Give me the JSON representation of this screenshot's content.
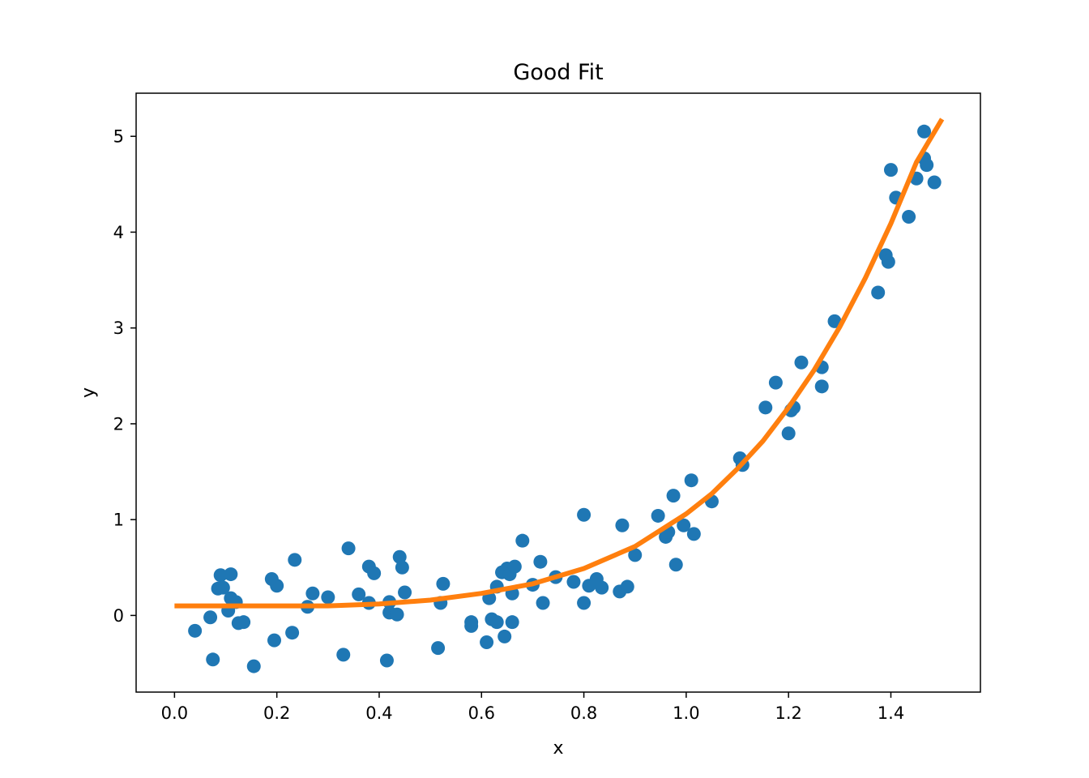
{
  "chart_data": {
    "type": "scatter",
    "title": "Good Fit",
    "xlabel": "x",
    "ylabel": "y",
    "xlim": [
      -0.075,
      1.575
    ],
    "ylim": [
      -0.8,
      5.45
    ],
    "xticks": [
      0.0,
      0.2,
      0.4,
      0.6,
      0.8,
      1.0,
      1.2,
      1.4
    ],
    "xtick_labels": [
      "0.0",
      "0.2",
      "0.4",
      "0.6",
      "0.8",
      "1.0",
      "1.2",
      "1.4"
    ],
    "yticks": [
      0,
      1,
      2,
      3,
      4,
      5
    ],
    "ytick_labels": [
      "0",
      "1",
      "2",
      "3",
      "4",
      "5"
    ],
    "grid": false,
    "legend": "none",
    "point_color": "#1f77b4",
    "line_color": "#ff7f0e",
    "scatter": {
      "x": [
        0.04,
        0.07,
        0.075,
        0.085,
        0.09,
        0.095,
        0.105,
        0.11,
        0.11,
        0.12,
        0.125,
        0.135,
        0.155,
        0.19,
        0.195,
        0.2,
        0.23,
        0.235,
        0.26,
        0.27,
        0.3,
        0.33,
        0.34,
        0.36,
        0.38,
        0.38,
        0.39,
        0.415,
        0.42,
        0.42,
        0.435,
        0.44,
        0.445,
        0.45,
        0.515,
        0.52,
        0.525,
        0.58,
        0.58,
        0.61,
        0.615,
        0.62,
        0.63,
        0.63,
        0.64,
        0.645,
        0.65,
        0.655,
        0.66,
        0.66,
        0.665,
        0.68,
        0.7,
        0.715,
        0.72,
        0.745,
        0.78,
        0.8,
        0.8,
        0.81,
        0.825,
        0.835,
        0.87,
        0.875,
        0.885,
        0.9,
        0.945,
        0.96,
        0.965,
        0.975,
        0.98,
        0.995,
        1.01,
        1.015,
        1.05,
        1.105,
        1.11,
        1.155,
        1.175,
        1.2,
        1.205,
        1.21,
        1.225,
        1.265,
        1.265,
        1.29,
        1.375,
        1.39,
        1.395,
        1.4,
        1.41,
        1.435,
        1.45,
        1.465,
        1.465,
        1.47,
        1.485
      ],
      "y": [
        -0.16,
        -0.02,
        -0.46,
        0.28,
        0.42,
        0.29,
        0.05,
        0.18,
        0.43,
        0.14,
        -0.08,
        -0.07,
        -0.53,
        0.38,
        -0.26,
        0.31,
        -0.18,
        0.58,
        0.09,
        0.23,
        0.19,
        -0.41,
        0.7,
        0.22,
        0.51,
        0.13,
        0.44,
        -0.47,
        0.03,
        0.14,
        0.01,
        0.61,
        0.5,
        0.24,
        -0.34,
        0.13,
        0.33,
        -0.07,
        -0.11,
        -0.28,
        0.18,
        -0.04,
        0.3,
        -0.07,
        0.45,
        -0.22,
        0.49,
        0.43,
        0.23,
        -0.07,
        0.51,
        0.78,
        0.32,
        0.56,
        0.13,
        0.4,
        0.35,
        1.05,
        0.13,
        0.31,
        0.38,
        0.29,
        0.25,
        0.94,
        0.3,
        0.63,
        1.04,
        0.82,
        0.87,
        1.25,
        0.53,
        0.94,
        1.41,
        0.85,
        1.19,
        1.64,
        1.57,
        2.17,
        2.43,
        1.9,
        2.14,
        2.17,
        2.64,
        2.39,
        2.59,
        3.07,
        3.37,
        3.76,
        3.69,
        4.65,
        4.36,
        4.16,
        4.56,
        5.05,
        4.77,
        4.7,
        4.52
      ]
    },
    "fit_line": {
      "x": [
        0.0,
        0.1,
        0.2,
        0.3,
        0.4,
        0.5,
        0.6,
        0.7,
        0.8,
        0.9,
        1.0,
        1.05,
        1.1,
        1.15,
        1.2,
        1.25,
        1.3,
        1.35,
        1.4,
        1.45,
        1.5
      ],
      "y": [
        0.1,
        0.1,
        0.1,
        0.1,
        0.12,
        0.16,
        0.23,
        0.33,
        0.49,
        0.72,
        1.06,
        1.27,
        1.53,
        1.82,
        2.17,
        2.56,
        3.01,
        3.52,
        4.09,
        4.73,
        5.18
      ]
    }
  }
}
